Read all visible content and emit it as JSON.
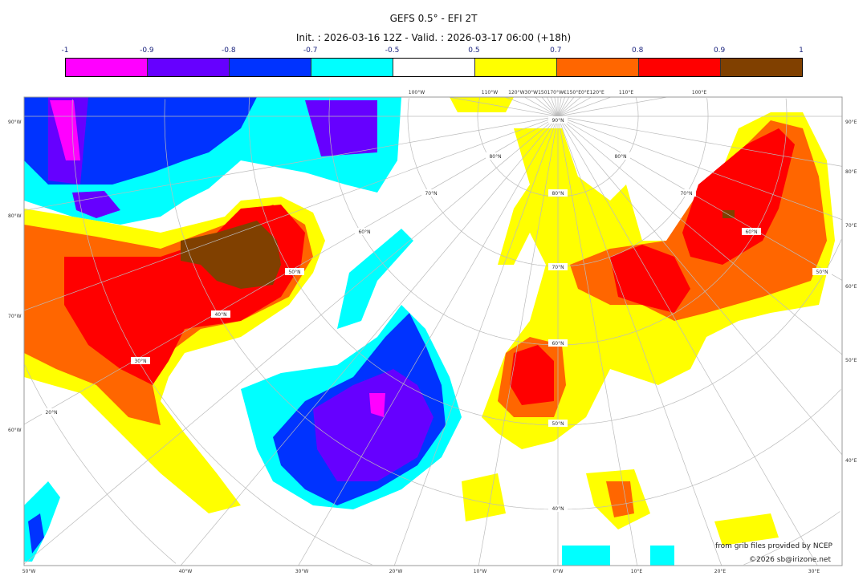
{
  "title": "GEFS 0.5° - EFI 2T",
  "subtitle": "Init. : 2026-03-16 12Z - Valid. : 2026-03-17 06:00 (+18h)",
  "colorbar": {
    "ticks": [
      "-1",
      "-0.9",
      "-0.8",
      "-0.7",
      "-0.5",
      "0.5",
      "0.7",
      "0.8",
      "0.9",
      "1"
    ],
    "colors": [
      "#ff00ff",
      "#6600ff",
      "#0033ff",
      "#00ffff",
      "#ffffff",
      "#ffff00",
      "#ff6600",
      "#ff0000",
      "#804000"
    ]
  },
  "map": {
    "projection": "polar stereographic",
    "left_labels": [
      "90°W",
      "80°W",
      "70°W",
      "60°W"
    ],
    "right_labels": [
      "90°E",
      "80°E",
      "70°E",
      "60°E",
      "50°E",
      "40°E"
    ],
    "bottom_labels": [
      "50°W",
      "40°W",
      "30°W",
      "20°W",
      "10°W",
      "0°W",
      "10°E",
      "20°E",
      "30°E"
    ],
    "top_labels": [
      "100°W",
      "110°W",
      "120°W30°W150170°W€150°E0°E120°E",
      "110°E",
      "100°E"
    ],
    "lat_labels": [
      "90°N",
      "80°N",
      "70°N",
      "60°N",
      "50°N",
      "40°N",
      "30°N",
      "20°N",
      "80°N",
      "70°N",
      "60°N",
      "50°N",
      "40°N",
      "80°N",
      "70°N",
      "60°N",
      "50°N"
    ]
  },
  "credits": {
    "source": "from grib files provided by NCEP",
    "copyright": "©2026 sb@irizone.net"
  }
}
